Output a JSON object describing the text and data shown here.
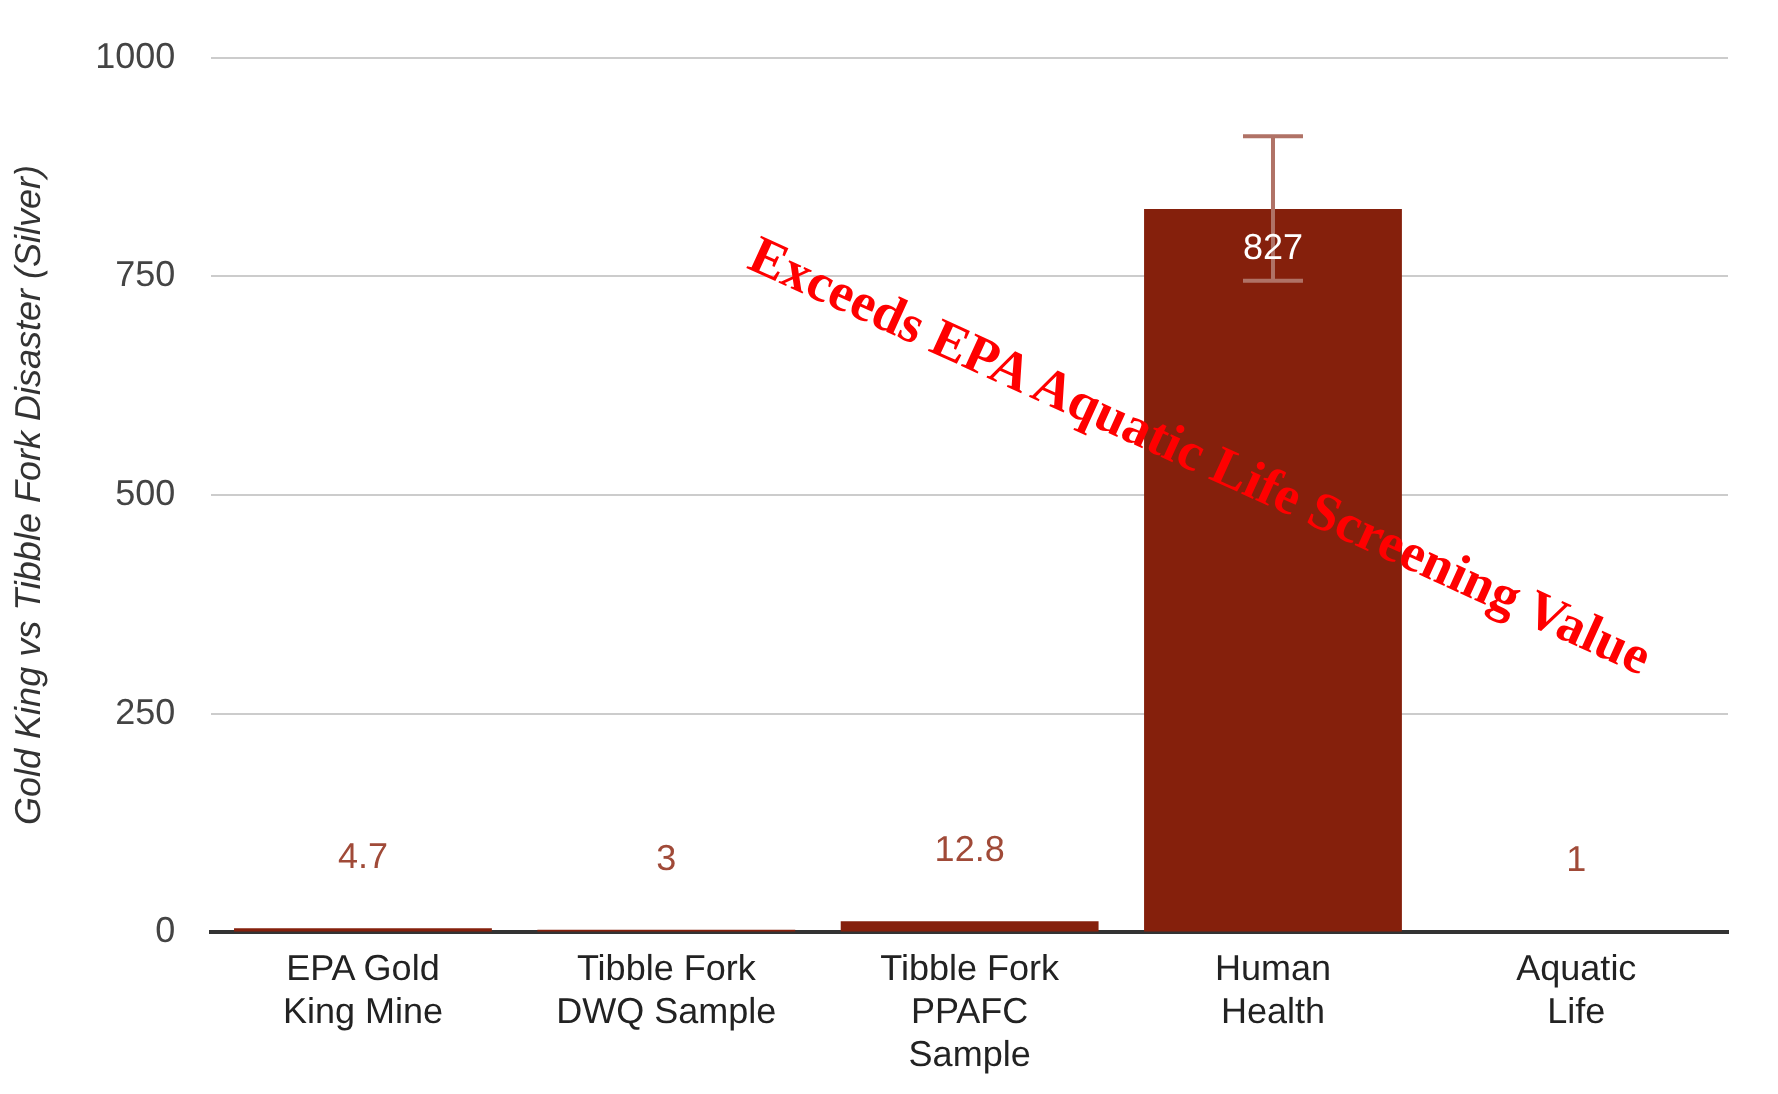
{
  "chart_data": {
    "type": "bar",
    "ylabel": "Gold King vs Tibble Fork Disaster (Silver)",
    "categories": [
      "EPA Gold King Mine",
      "Tibble Fork DWQ Sample",
      "Tibble Fork PPAFC Sample",
      "Human Health",
      "Aquatic Life"
    ],
    "values": [
      4.7,
      3,
      12.8,
      827,
      1
    ],
    "errors": [
      null,
      null,
      null,
      [
        745,
        910
      ],
      null
    ],
    "color": "#85200c",
    "ylim": [
      0,
      1000
    ],
    "yticks": [
      0,
      250,
      500,
      750,
      1000
    ],
    "grid": "y",
    "legend": false,
    "data_labels": true,
    "annotations": [
      "Exceeds EPA Aquatic Life Screening Value"
    ]
  }
}
